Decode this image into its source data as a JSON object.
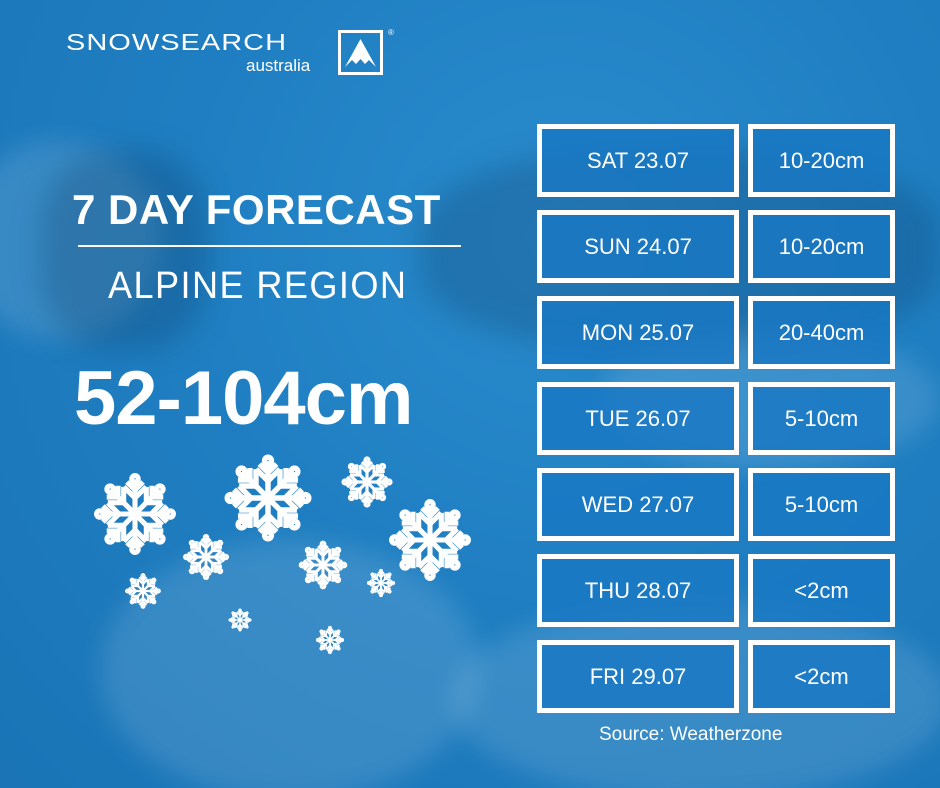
{
  "brand": {
    "name": "SNOWSEARCH",
    "sub": "australia",
    "registered": "®"
  },
  "title": "7 DAY FORECAST",
  "region": "ALPINE REGION",
  "total": "52-104cm",
  "forecast": [
    {
      "day": "SAT 23.07",
      "snow": "10-20cm"
    },
    {
      "day": "SUN 24.07",
      "snow": "10-20cm"
    },
    {
      "day": "MON 25.07",
      "snow": "20-40cm"
    },
    {
      "day": "TUE 26.07",
      "snow": "5-10cm"
    },
    {
      "day": "WED 27.07",
      "snow": "5-10cm"
    },
    {
      "day": "THU 28.07",
      "snow": "<2cm"
    },
    {
      "day": "FRI 29.07",
      "snow": "<2cm"
    }
  ],
  "source": "Source: Weatherzone",
  "colors": {
    "background": "#1f7fc2",
    "cell": "#1878c3",
    "text": "#ffffff"
  }
}
